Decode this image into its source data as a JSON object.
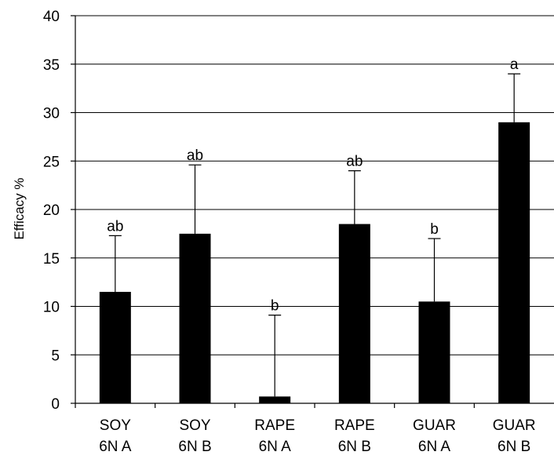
{
  "chart_data": {
    "type": "bar",
    "categories": [
      [
        "SOY",
        "6N A"
      ],
      [
        "SOY",
        "6N B"
      ],
      [
        "RAPE",
        "6N A"
      ],
      [
        "RAPE",
        "6N B"
      ],
      [
        "GUAR",
        "6N A"
      ],
      [
        "GUAR",
        "6N B"
      ]
    ],
    "values": [
      11.5,
      17.5,
      0.7,
      18.5,
      10.5,
      29.0
    ],
    "error_upper": [
      17.3,
      24.6,
      9.1,
      24.0,
      17.0,
      34.0
    ],
    "significance": [
      "ab",
      "ab",
      "b",
      "ab",
      "b",
      "a"
    ],
    "ylabel": "Efficacy %",
    "xlabel": "",
    "ylim": [
      0,
      40
    ],
    "yticks": [
      0,
      5,
      10,
      15,
      20,
      25,
      30,
      35,
      40
    ],
    "grid": true,
    "bar_color": "#000000"
  }
}
